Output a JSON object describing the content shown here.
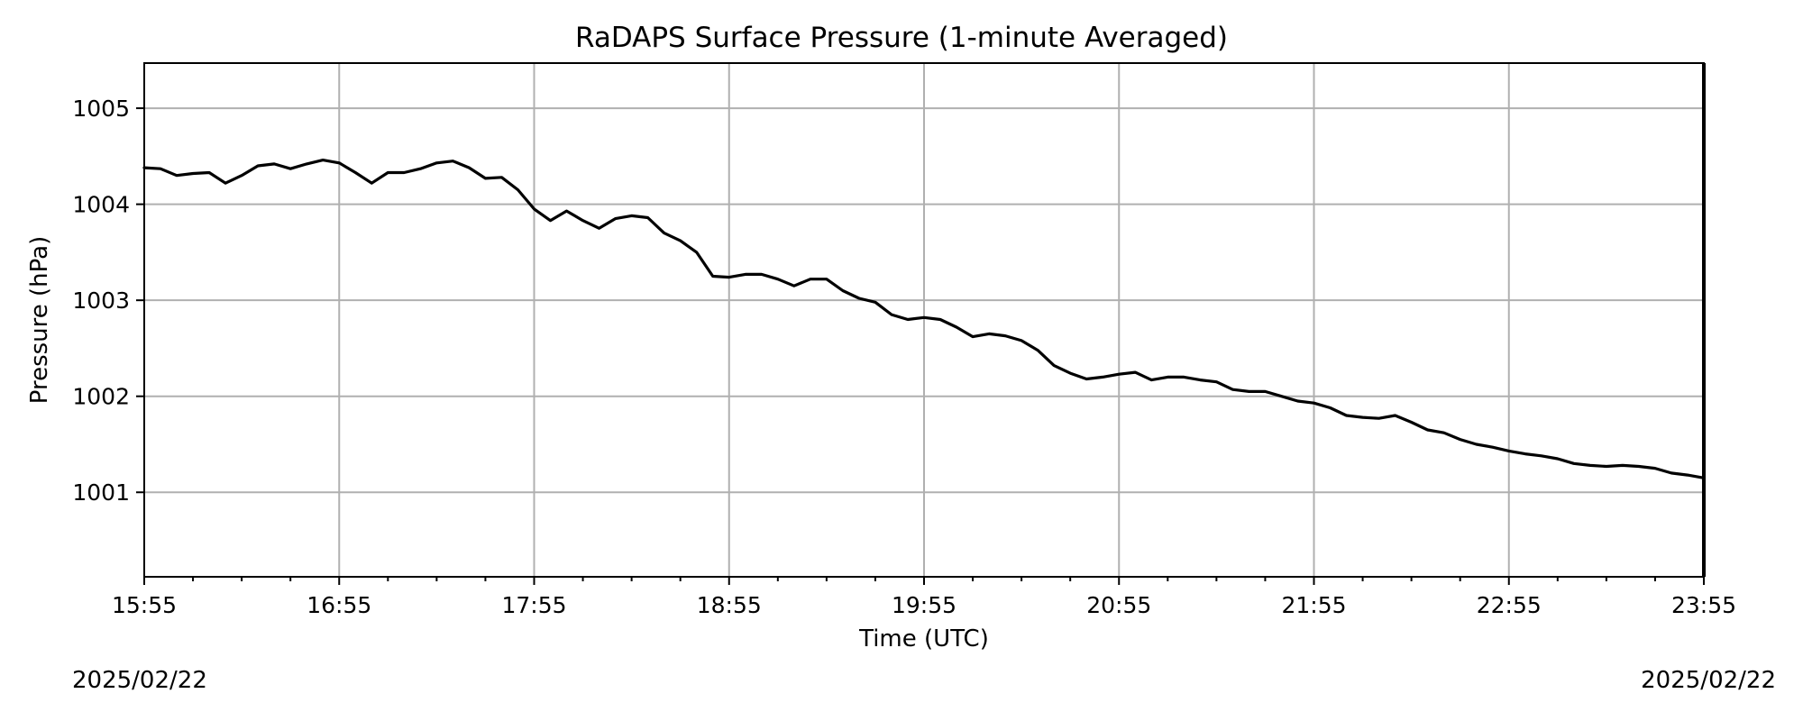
{
  "chart_data": {
    "type": "line",
    "title": "RaDAPS Surface Pressure (1-minute Averaged)",
    "xlabel": "Time (UTC)",
    "ylabel": "Pressure (hPa)",
    "x_tick_labels": [
      "15:55",
      "16:55",
      "17:55",
      "18:55",
      "19:55",
      "20:55",
      "21:55",
      "22:55",
      "23:55"
    ],
    "y_tick_labels": [
      "1001",
      "1002",
      "1003",
      "1004",
      "1005"
    ],
    "y_ticks": [
      1001,
      1002,
      1003,
      1004,
      1005
    ],
    "xlim": [
      "15:55",
      "23:55"
    ],
    "ylim": [
      1000.12,
      1005.47
    ],
    "grid": true,
    "date_left": "2025/02/22",
    "date_right": "2025/02/22",
    "series": [
      {
        "color": "#000000",
        "x": [
          "15:55",
          "16:00",
          "16:05",
          "16:10",
          "16:15",
          "16:20",
          "16:25",
          "16:30",
          "16:35",
          "16:40",
          "16:45",
          "16:50",
          "16:55",
          "17:00",
          "17:05",
          "17:10",
          "17:15",
          "17:20",
          "17:25",
          "17:30",
          "17:35",
          "17:40",
          "17:45",
          "17:50",
          "17:55",
          "18:00",
          "18:05",
          "18:10",
          "18:15",
          "18:20",
          "18:25",
          "18:30",
          "18:35",
          "18:40",
          "18:45",
          "18:50",
          "18:55",
          "19:00",
          "19:05",
          "19:10",
          "19:15",
          "19:20",
          "19:25",
          "19:30",
          "19:35",
          "19:40",
          "19:45",
          "19:50",
          "19:55",
          "20:00",
          "20:05",
          "20:10",
          "20:15",
          "20:20",
          "20:25",
          "20:30",
          "20:35",
          "20:40",
          "20:45",
          "20:50",
          "20:55",
          "21:00",
          "21:05",
          "21:10",
          "21:15",
          "21:20",
          "21:25",
          "21:30",
          "21:35",
          "21:40",
          "21:45",
          "21:50",
          "21:55",
          "22:00",
          "22:05",
          "22:10",
          "22:15",
          "22:20",
          "22:25",
          "22:30",
          "22:35",
          "22:40",
          "22:45",
          "22:50",
          "22:55",
          "23:00",
          "23:05",
          "23:10",
          "23:15",
          "23:20",
          "23:25",
          "23:30",
          "23:35",
          "23:40",
          "23:45",
          "23:50",
          "23:55"
        ],
        "y": [
          1004.38,
          1004.37,
          1004.3,
          1004.32,
          1004.33,
          1004.22,
          1004.3,
          1004.4,
          1004.42,
          1004.37,
          1004.42,
          1004.46,
          1004.43,
          1004.33,
          1004.22,
          1004.33,
          1004.33,
          1004.37,
          1004.43,
          1004.45,
          1004.38,
          1004.27,
          1004.28,
          1004.15,
          1003.95,
          1003.83,
          1003.93,
          1003.83,
          1003.75,
          1003.85,
          1003.88,
          1003.86,
          1003.7,
          1003.62,
          1003.5,
          1003.25,
          1003.24,
          1003.27,
          1003.27,
          1003.22,
          1003.15,
          1003.22,
          1003.22,
          1003.1,
          1003.02,
          1002.98,
          1002.85,
          1002.8,
          1002.82,
          1002.8,
          1002.72,
          1002.62,
          1002.65,
          1002.63,
          1002.58,
          1002.48,
          1002.32,
          1002.24,
          1002.18,
          1002.2,
          1002.23,
          1002.25,
          1002.17,
          1002.2,
          1002.2,
          1002.17,
          1002.15,
          1002.07,
          1002.05,
          1002.05,
          1002.0,
          1001.95,
          1001.93,
          1001.88,
          1001.8,
          1001.78,
          1001.77,
          1001.8,
          1001.73,
          1001.65,
          1001.62,
          1001.55,
          1001.5,
          1001.47,
          1001.43,
          1001.4,
          1001.38,
          1001.35,
          1001.3,
          1001.28,
          1001.27,
          1001.28,
          1001.27,
          1001.25,
          1001.2,
          1001.18,
          1001.15
        ]
      }
    ]
  }
}
